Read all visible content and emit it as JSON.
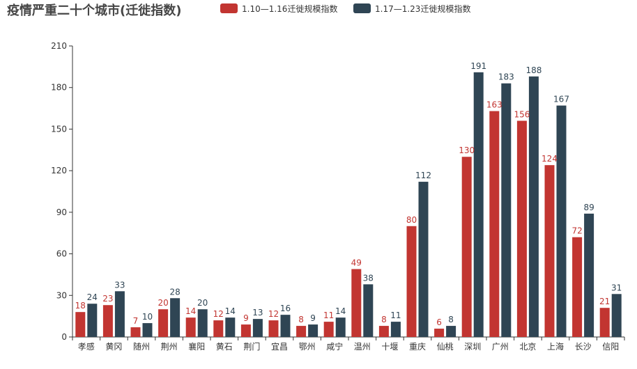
{
  "chart_data": {
    "type": "bar",
    "title": "疫情严重二十个城市(迁徙指数)",
    "categories": [
      "孝感",
      "黄冈",
      "随州",
      "荆州",
      "襄阳",
      "黄石",
      "荆门",
      "宜昌",
      "鄂州",
      "咸宁",
      "温州",
      "十堰",
      "重庆",
      "仙桃",
      "深圳",
      "广州",
      "北京",
      "上海",
      "长沙",
      "信阳"
    ],
    "series": [
      {
        "name": "1.10—1.16迁徙规模指数",
        "color": "#c23531",
        "values": [
          18,
          23,
          7,
          20,
          14,
          12,
          9,
          12,
          8,
          11,
          49,
          8,
          80,
          6,
          130,
          163,
          156,
          124,
          72,
          21
        ]
      },
      {
        "name": "1.17—1.23迁徙规模指数",
        "color": "#2f4554",
        "values": [
          24,
          33,
          10,
          28,
          20,
          14,
          13,
          16,
          9,
          14,
          38,
          11,
          112,
          8,
          191,
          183,
          188,
          167,
          89,
          31
        ]
      }
    ],
    "ylim": [
      0,
      210
    ],
    "yticks": [
      0,
      30,
      60,
      90,
      120,
      150,
      180,
      210
    ],
    "xlabel": "",
    "ylabel": "",
    "legend_position": "top",
    "grid": false,
    "data_labels": true
  }
}
